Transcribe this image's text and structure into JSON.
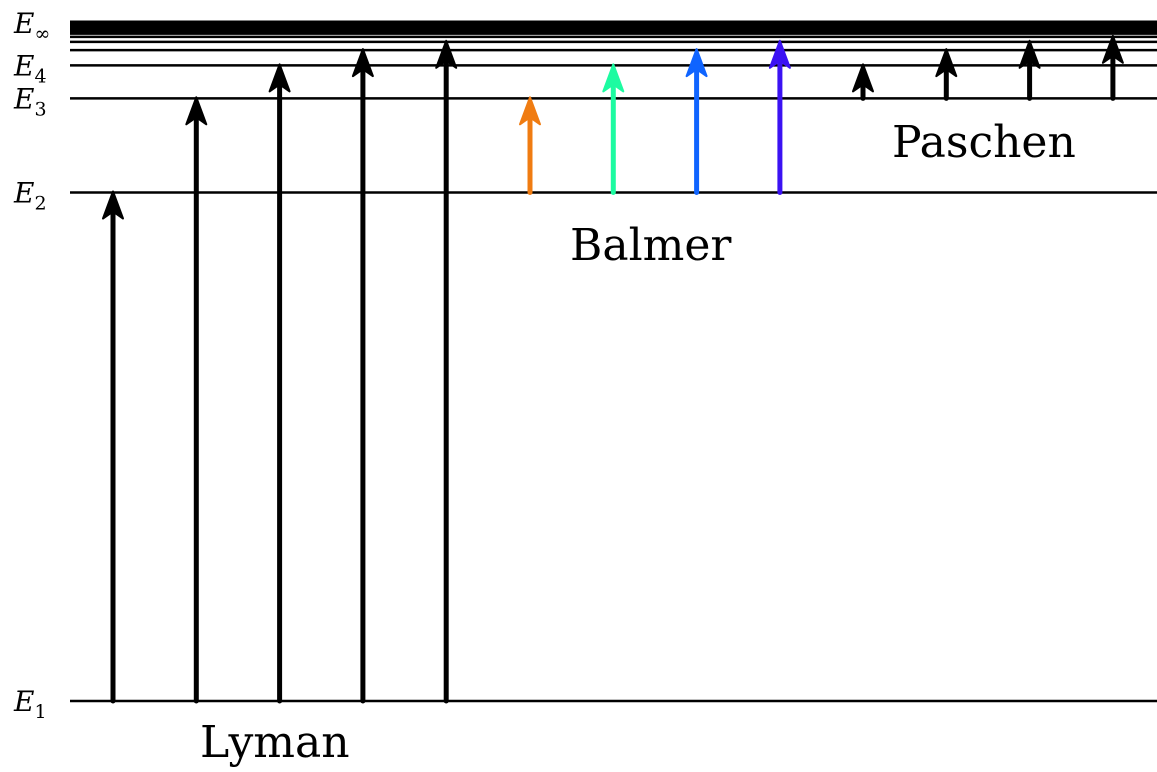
{
  "diagram": {
    "level_labels": [
      {
        "n": 1,
        "symbol": "E",
        "subscript": "1"
      },
      {
        "n": 2,
        "symbol": "E",
        "subscript": "2"
      },
      {
        "n": 3,
        "symbol": "E",
        "subscript": "3"
      },
      {
        "n": 4,
        "symbol": "E",
        "subscript": "4"
      },
      {
        "n": "inf",
        "symbol": "E",
        "subscript": "∞"
      }
    ],
    "extra_levels_n": [
      5,
      6,
      7,
      8,
      9,
      10,
      12,
      15,
      20,
      "inf"
    ],
    "series": [
      {
        "name": "Lyman",
        "from_n": 1,
        "to_n": [
          2,
          3,
          4,
          5,
          6
        ],
        "colors": [
          "#000000",
          "#000000",
          "#000000",
          "#000000",
          "#000000"
        ]
      },
      {
        "name": "Balmer",
        "from_n": 2,
        "to_n": [
          3,
          4,
          5,
          6
        ],
        "colors": [
          "#f07c12",
          "#1dfba1",
          "#0f64ff",
          "#3b12f3"
        ]
      },
      {
        "name": "Paschen",
        "from_n": 3,
        "to_n": [
          4,
          5,
          6,
          7
        ],
        "colors": [
          "#000000",
          "#000000",
          "#000000",
          "#000000"
        ]
      }
    ]
  }
}
